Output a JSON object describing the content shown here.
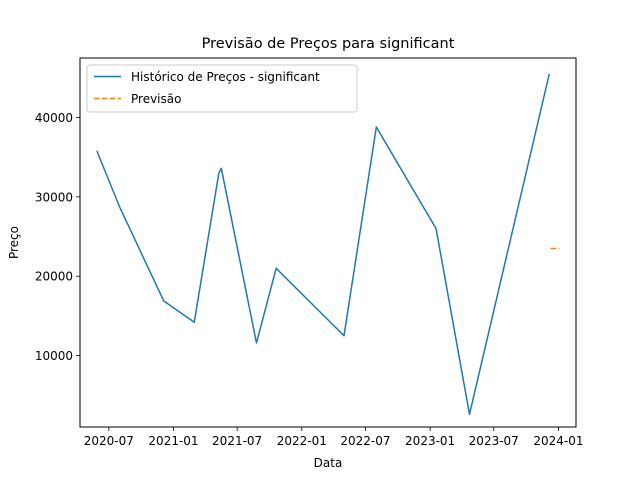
{
  "chart_data": {
    "type": "line",
    "title": "Previsão de Preços para significant",
    "xlabel": "Data",
    "ylabel": "Preço",
    "x_ticks": [
      "2020-07",
      "2021-01",
      "2021-07",
      "2022-01",
      "2022-07",
      "2023-01",
      "2023-07",
      "2024-01"
    ],
    "y_ticks": [
      10000,
      20000,
      30000,
      40000
    ],
    "xlim": [
      "2020-04-10",
      "2024-02-20"
    ],
    "ylim": [
      1000,
      47500
    ],
    "grid": false,
    "legend_position": "top-left",
    "series": [
      {
        "name": "Histórico de Preços - significant",
        "color": "#1f77b4",
        "style": "solid",
        "points": [
          {
            "x": "2020-05-28",
            "y": 35800
          },
          {
            "x": "2020-07-31",
            "y": 28800
          },
          {
            "x": "2020-12-04",
            "y": 16900
          },
          {
            "x": "2021-03-01",
            "y": 14200
          },
          {
            "x": "2021-05-10",
            "y": 33000
          },
          {
            "x": "2021-05-17",
            "y": 33600
          },
          {
            "x": "2021-08-25",
            "y": 11600
          },
          {
            "x": "2021-10-20",
            "y": 21000
          },
          {
            "x": "2022-05-01",
            "y": 12500
          },
          {
            "x": "2022-08-01",
            "y": 38800
          },
          {
            "x": "2023-01-18",
            "y": 26000
          },
          {
            "x": "2023-04-23",
            "y": 2600
          },
          {
            "x": "2023-12-06",
            "y": 45500
          }
        ]
      },
      {
        "name": "Previsão",
        "color": "#ff7f0e",
        "style": "dashed",
        "points": [
          {
            "x": "2023-12-10",
            "y": 23500
          },
          {
            "x": "2024-01-04",
            "y": 23500
          }
        ]
      }
    ]
  }
}
